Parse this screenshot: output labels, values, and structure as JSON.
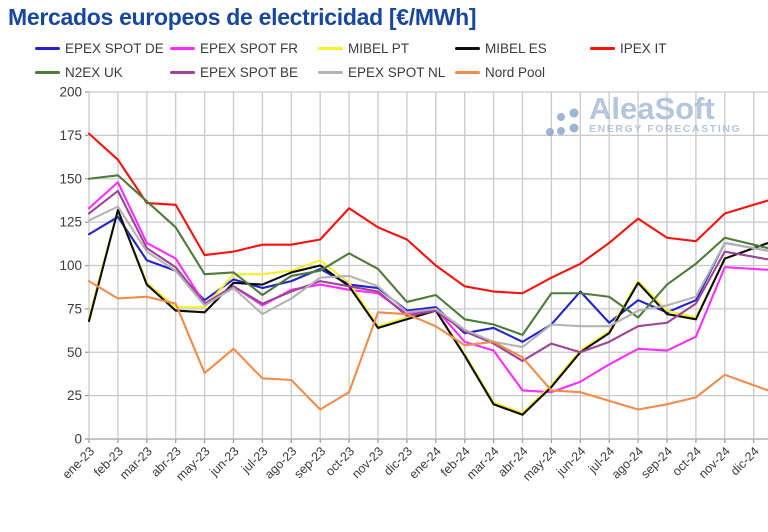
{
  "ui": {
    "title_color": "#17479e",
    "watermark": {
      "brand": "AleaSoft",
      "tagline": "ENERGY FORECASTING",
      "color": "#a7bbd7",
      "dots_color": "#8ca7cb"
    },
    "grid_color": "#c9c9c9",
    "axis_color": "#a0a0a0",
    "tick_label_color": "#3b3b3b"
  },
  "chart_data": {
    "type": "line",
    "title": "Mercados europeos de electricidad [€/MWh]",
    "xlabel": "",
    "ylabel": "",
    "ylim": [
      0,
      200
    ],
    "yticks": [
      0,
      25,
      50,
      75,
      100,
      125,
      150,
      175,
      200
    ],
    "grid": true,
    "legend_position": "top",
    "categories": [
      "ene-23",
      "feb-23",
      "mar-23",
      "abr-23",
      "may-23",
      "jun-23",
      "jul-23",
      "ago-23",
      "sep-23",
      "oct-23",
      "nov-23",
      "dic-23",
      "ene-24",
      "feb-24",
      "mar-24",
      "abr-24",
      "may-24",
      "jun-24",
      "jul-24",
      "ago-24",
      "sep-24",
      "oct-24",
      "nov-24",
      "dic-24"
    ],
    "series": [
      {
        "name": "EPEX SPOT DE",
        "color": "#2323cc",
        "values": [
          118,
          128,
          103,
          97,
          80,
          92,
          87,
          91,
          98,
          89,
          87,
          74,
          76,
          61,
          64,
          56,
          66,
          85,
          67,
          80,
          73,
          80,
          113,
          110
        ]
      },
      {
        "name": "EPEX SPOT FR",
        "color": "#ff2dff",
        "values": [
          133,
          148,
          113,
          104,
          78,
          88,
          77,
          86,
          89,
          86,
          84,
          72,
          75,
          56,
          51,
          28,
          27,
          33,
          43,
          52,
          51,
          59,
          99,
          98
        ]
      },
      {
        "name": "MIBEL PT",
        "color": "#f5ef2e",
        "values": [
          70,
          132,
          90,
          76,
          76,
          95,
          95,
          97,
          103,
          90,
          65,
          70,
          74,
          49,
          21,
          15,
          31,
          51,
          62,
          91,
          74,
          70,
          104,
          110
        ]
      },
      {
        "name": "MIBEL ES",
        "color": "#0d0d0d",
        "values": [
          68,
          132,
          89,
          74,
          73,
          90,
          89,
          96,
          100,
          88,
          64,
          69,
          74,
          48,
          20,
          14,
          30,
          50,
          61,
          90,
          72,
          69,
          104,
          110
        ]
      },
      {
        "name": "IPEX IT",
        "color": "#fa100c",
        "values": [
          176,
          161,
          136,
          135,
          106,
          108,
          112,
          112,
          115,
          133,
          122,
          115,
          100,
          88,
          85,
          84,
          93,
          101,
          113,
          127,
          116,
          114,
          130,
          135
        ]
      },
      {
        "name": "N2EX UK",
        "color": "#4e7b3a",
        "values": [
          150,
          152,
          137,
          122,
          95,
          96,
          83,
          94,
          97,
          107,
          98,
          79,
          83,
          69,
          66,
          60,
          84,
          84,
          82,
          70,
          89,
          101,
          116,
          112
        ]
      },
      {
        "name": "EPEX SPOT BE",
        "color": "#9c4596",
        "values": [
          130,
          143,
          110,
          99,
          78,
          88,
          78,
          85,
          91,
          88,
          85,
          71,
          74,
          62,
          55,
          45,
          55,
          50,
          56,
          65,
          67,
          78,
          108,
          105
        ]
      },
      {
        "name": "EPEX SPOT NL",
        "color": "#b3b3b3",
        "values": [
          126,
          134,
          108,
          97,
          77,
          87,
          72,
          81,
          93,
          94,
          88,
          73,
          75,
          63,
          56,
          53,
          66,
          65,
          65,
          74,
          77,
          82,
          113,
          110
        ]
      },
      {
        "name": "Nord Pool",
        "color": "#f08c4c",
        "values": [
          91,
          81,
          82,
          78,
          38,
          52,
          35,
          34,
          17,
          27,
          73,
          72,
          65,
          54,
          56,
          47,
          28,
          27,
          22,
          17,
          20,
          24,
          37,
          31
        ]
      }
    ]
  }
}
